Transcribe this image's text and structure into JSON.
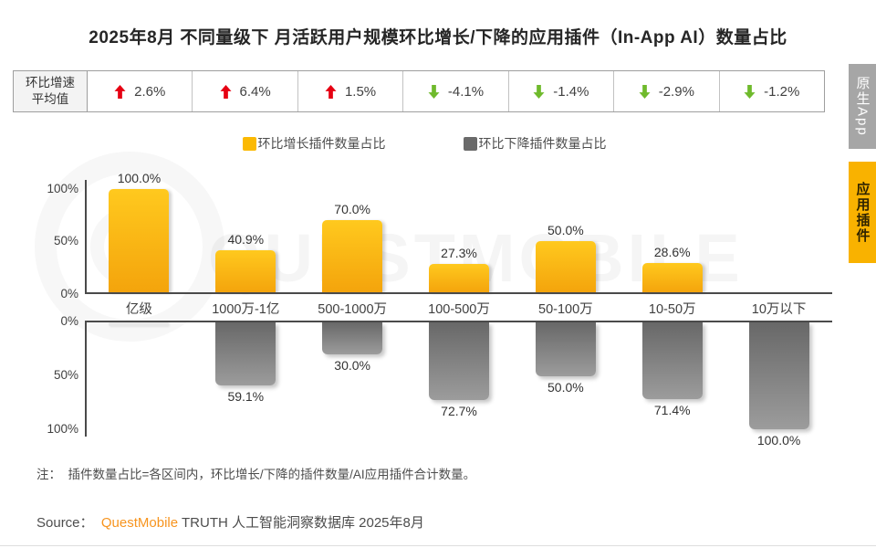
{
  "page": {
    "title": "2025年8月 不同量级下 月活跃用户规模环比增长/下降的应用插件（In-App AI）数量占比",
    "note": "注：  插件数量占比=各区间内，环比增长/下降的插件数量/AI应用插件合计数量。",
    "watermark": "QUESTMOBILE"
  },
  "stats_row": {
    "label_line1": "环比增速",
    "label_line2": "平均值",
    "cells": [
      {
        "direction": "up",
        "value": "2.6%"
      },
      {
        "direction": "up",
        "value": "6.4%"
      },
      {
        "direction": "up",
        "value": "1.5%"
      },
      {
        "direction": "down",
        "value": "-4.1%"
      },
      {
        "direction": "down",
        "value": "-1.4%"
      },
      {
        "direction": "down",
        "value": "-2.9%"
      },
      {
        "direction": "down",
        "value": "-1.2%"
      }
    ]
  },
  "legend": {
    "items": [
      {
        "label": "环比增长插件数量占比",
        "color": "#FBB903"
      },
      {
        "label": "环比下降插件数量占比",
        "color": "#6A6A6A"
      }
    ]
  },
  "chart_data": {
    "type": "bar",
    "title": "2025年8月 不同量级下 月活跃用户规模环比增长/下降的应用插件（In-App AI）数量占比",
    "categories": [
      "亿级",
      "1000万-1亿",
      "500-1000万",
      "100-500万",
      "50-100万",
      "10-50万",
      "10万以下"
    ],
    "series": [
      {
        "name": "环比增长插件数量占比",
        "color": "#FBB903",
        "unit": "%",
        "values": [
          100.0,
          40.9,
          70.0,
          27.3,
          50.0,
          28.6,
          null
        ]
      },
      {
        "name": "环比下降插件数量占比",
        "color": "#6A6A6A",
        "unit": "%",
        "values": [
          0.0,
          59.1,
          30.0,
          72.7,
          50.0,
          71.4,
          100.0
        ]
      }
    ],
    "avg_growth_rate_pct": [
      2.6,
      6.4,
      1.5,
      -4.1,
      -1.4,
      -2.9,
      -1.2
    ],
    "axes": {
      "up_ticks": [
        "100%",
        "50%",
        "0%"
      ],
      "down_ticks": [
        "0%",
        "50%",
        "100%"
      ],
      "up_range": [
        0,
        100
      ],
      "down_range": [
        0,
        100
      ],
      "grid": false
    },
    "legend_position": "top"
  },
  "source": {
    "prefix": "Source：  ",
    "brand": "QuestMobile",
    "suffix": " TRUTH 人工智能洞察数据库 2025年8月"
  },
  "sidebar": {
    "tabs": [
      {
        "label": "原生App",
        "active": false,
        "bg": "#A6A6A6",
        "fg": "#FFFFFF"
      },
      {
        "label": "应用插件",
        "active": true,
        "bg": "#F9B200",
        "fg": "#2E2300"
      }
    ]
  },
  "colors": {
    "up_bar_top": "#FFC91E",
    "up_bar_bottom": "#F4A40C",
    "down_bar_top": "#686868",
    "down_bar_bottom": "#9C9C9C",
    "up_arrow": "#E60012",
    "down_arrow": "#6FBA2C",
    "brand_orange": "#F7941E",
    "axis": "#4A4A4A",
    "text": "#404040"
  }
}
